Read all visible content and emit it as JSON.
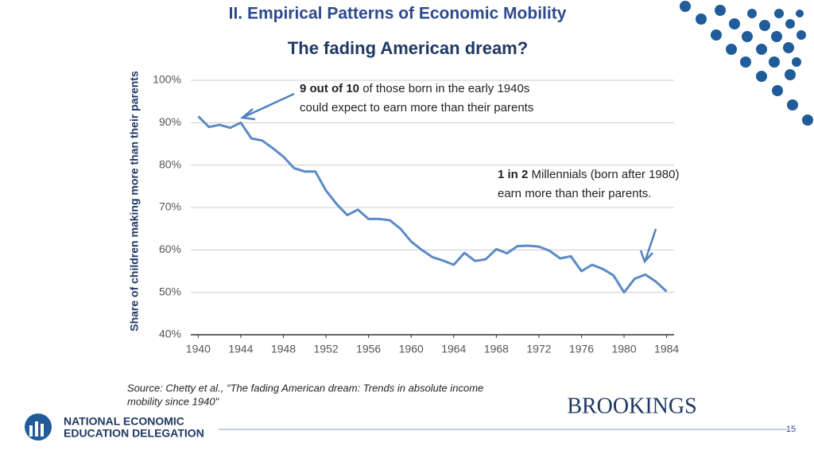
{
  "header": {
    "title": "II. Empirical Patterns of Economic Mobility"
  },
  "chart_data": {
    "type": "line",
    "title": "The fading American dream?",
    "y_label": "Share of children making more than their parents",
    "x": [
      1940,
      1941,
      1942,
      1943,
      1944,
      1945,
      1946,
      1947,
      1948,
      1949,
      1950,
      1951,
      1952,
      1953,
      1954,
      1955,
      1956,
      1957,
      1958,
      1959,
      1960,
      1961,
      1962,
      1963,
      1964,
      1965,
      1966,
      1967,
      1968,
      1969,
      1970,
      1971,
      1972,
      1973,
      1974,
      1975,
      1976,
      1977,
      1978,
      1979,
      1980,
      1981,
      1982,
      1983,
      1984
    ],
    "series": [
      {
        "color": "#5b8ac6",
        "values": [
          91.5,
          89,
          89.5,
          88.8,
          90,
          86.3,
          85.8,
          84,
          82,
          79.3,
          78.5,
          78.5,
          74,
          70.8,
          68.2,
          69.5,
          67.3,
          67.3,
          67,
          65,
          62,
          60,
          58.3,
          57.5,
          56.5,
          59.3,
          57.4,
          57.8,
          60.2,
          59.2,
          60.9,
          61,
          60.8,
          59.8,
          58,
          58.5,
          55,
          56.5,
          55.5,
          54,
          50,
          53.2,
          54.2,
          52.5,
          50.2
        ]
      }
    ],
    "xlim": [
      1939.3,
      1984.7
    ],
    "xticks": [
      1940,
      1944,
      1948,
      1952,
      1956,
      1960,
      1964,
      1968,
      1972,
      1976,
      1980,
      1984
    ],
    "ylim": [
      40,
      100
    ],
    "yticks": [
      {
        "value": 40,
        "label": "40%"
      },
      {
        "value": 50,
        "label": "50%"
      },
      {
        "value": 60,
        "label": "60%"
      },
      {
        "value": 70,
        "label": "70%"
      },
      {
        "value": 80,
        "label": "80%"
      },
      {
        "value": 90,
        "label": "90%"
      },
      {
        "value": 100,
        "label": "100%"
      }
    ],
    "grid": true,
    "annotations": [
      {
        "bold": "9 out of 10",
        "lines": [
          "of those born in the early 1940s",
          "could expect to earn more than their parents"
        ]
      },
      {
        "bold": "1 in 2",
        "lines": [
          "Millennials (born after 1980)",
          "earn more than their parents."
        ]
      }
    ]
  },
  "source": [
    "Source: Chetty et al., \"The fading American dream: Trends in absolute income",
    "mobility since 1940\""
  ],
  "brand": "BROOKINGS",
  "footer": {
    "org": [
      "NATIONAL ECONOMIC",
      "EDUCATION DELEGATION"
    ],
    "page": "15"
  }
}
